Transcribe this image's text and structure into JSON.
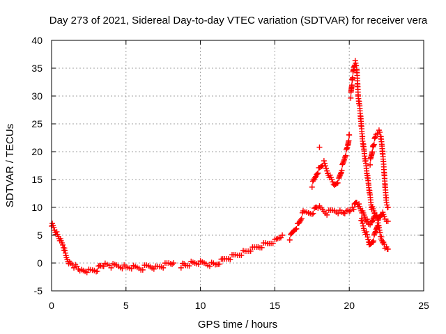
{
  "chart_data": {
    "type": "scatter",
    "title": "Day 273 of 2021, Sidereal Day-to-day VTEC variation (SDTVAR) for receiver vera",
    "xlabel": "GPS time / hours",
    "ylabel": "SDTVAR / TECUs",
    "xlim": [
      0,
      25
    ],
    "ylim": [
      -5,
      40
    ],
    "x_ticks": [
      "0",
      "5",
      "10",
      "15",
      "20",
      "25"
    ],
    "y_ticks": [
      "-5",
      "0",
      "5",
      "10",
      "15",
      "20",
      "25",
      "30",
      "35",
      "40"
    ],
    "grid": true,
    "marker": "+",
    "series": [
      {
        "name": "main",
        "color": "#ff0000",
        "x": [
          0.0,
          0.2,
          0.4,
          0.6,
          0.8,
          1.0,
          1.2,
          1.5,
          1.8,
          2.0,
          2.5,
          3.0,
          3.3,
          3.6,
          4.0,
          4.5,
          5.0,
          5.5,
          6.0,
          6.5,
          7.0,
          7.5,
          8.0,
          8.2
        ],
        "y": [
          7,
          6,
          5,
          4,
          3,
          1,
          0,
          -0.5,
          -1,
          -1.3,
          -1.5,
          -1.3,
          -0.5,
          -0.3,
          -0.5,
          -0.5,
          -0.8,
          -0.8,
          -1.0,
          -0.5,
          -0.8,
          -0.5,
          0,
          0
        ]
      },
      {
        "name": "main-2",
        "color": "#ff0000",
        "x": [
          8.7,
          9.0,
          9.5,
          10.0,
          10.5,
          11.0,
          11.5,
          12.0,
          12.5,
          13.0,
          13.5,
          14.0,
          14.5,
          15.0,
          15.5
        ],
        "y": [
          -0.5,
          -0.3,
          0,
          0,
          -0.2,
          -0.3,
          0.5,
          1,
          1.5,
          2,
          2.5,
          3,
          3.5,
          4,
          5
        ]
      },
      {
        "name": "main-3",
        "color": "#ff0000",
        "x": [
          16.0,
          16.3,
          16.6,
          16.9,
          17.5,
          17.8,
          18.0,
          18.5,
          19.0,
          19.5,
          19.8,
          20.0,
          20.2
        ],
        "y": [
          4.5,
          6,
          7,
          9,
          9,
          10,
          10,
          9,
          9.5,
          9,
          9,
          9.5,
          10
        ]
      },
      {
        "name": "spike-a",
        "color": "#ff0000",
        "x": [
          17.5,
          17.8,
          18.0,
          18.3,
          18.6,
          19.0,
          19.3,
          19.5,
          19.7,
          19.9,
          20.0
        ],
        "y": [
          14,
          16,
          17,
          18,
          16,
          14,
          15,
          17,
          19,
          21,
          23
        ]
      },
      {
        "name": "spike-b",
        "color": "#ff0000",
        "x": [
          20.1,
          20.2,
          20.3,
          20.4,
          20.5,
          20.6,
          20.7,
          20.8,
          20.9,
          21.0,
          21.1,
          21.2,
          21.3,
          21.4,
          21.5
        ],
        "y": [
          30,
          33,
          35,
          36,
          35,
          30,
          28,
          25,
          22,
          20,
          18,
          16,
          14,
          12,
          10
        ]
      },
      {
        "name": "tail-a",
        "color": "#ff0000",
        "x": [
          20.3,
          20.5,
          20.7,
          20.9,
          21.1,
          21.3,
          21.5,
          21.7
        ],
        "y": [
          10,
          11,
          10,
          9,
          8,
          7,
          7,
          9
        ]
      },
      {
        "name": "tail-b",
        "color": "#ff0000",
        "x": [
          21.4,
          21.6,
          21.8,
          22.0,
          22.1,
          22.2,
          22.3,
          22.4,
          22.5,
          22.6
        ],
        "y": [
          18,
          21,
          23,
          23.5,
          23,
          21,
          18,
          14,
          11,
          10
        ]
      },
      {
        "name": "tail-c",
        "color": "#ff0000",
        "x": [
          21.5,
          21.7,
          21.9,
          22.0,
          22.1,
          22.2,
          22.3,
          22.4,
          22.5,
          22.6
        ],
        "y": [
          10,
          9,
          8,
          6,
          5,
          4,
          3.5,
          3,
          3,
          2.5
        ]
      },
      {
        "name": "tail-d",
        "color": "#ff0000",
        "x": [
          20.8,
          21.0,
          21.2,
          21.4,
          21.6,
          21.8,
          22.0,
          22.2,
          22.4,
          22.6
        ],
        "y": [
          8,
          6,
          5,
          3,
          4,
          6,
          8,
          9,
          8,
          7.5
        ]
      },
      {
        "name": "isolated",
        "color": "#ff0000",
        "x": [
          18.0
        ],
        "y": [
          20.8
        ]
      }
    ]
  }
}
